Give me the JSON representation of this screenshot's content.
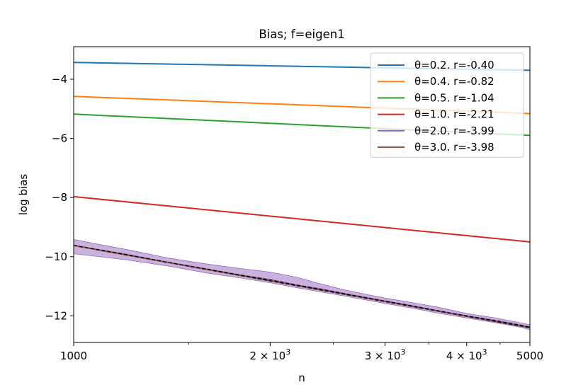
{
  "chart_data": {
    "type": "line",
    "title": "Bias;  f=eigen1",
    "xlabel": "n",
    "ylabel": "log bias",
    "xscale": "log",
    "xlim": [
      1000,
      5000
    ],
    "ylim": [
      -12.9,
      -2.9
    ],
    "xticks": [
      {
        "value": 1000,
        "label": "1000",
        "mant": "",
        "exp": ""
      },
      {
        "value": 2000,
        "label": "",
        "mant": "2 × 10",
        "exp": "3"
      },
      {
        "value": 3000,
        "label": "",
        "mant": "3 × 10",
        "exp": "3"
      },
      {
        "value": 4000,
        "label": "",
        "mant": "4 × 10",
        "exp": "3"
      },
      {
        "value": 5000,
        "label": "5000",
        "mant": "",
        "exp": ""
      }
    ],
    "yticks": [
      {
        "value": -4,
        "label": "−4"
      },
      {
        "value": -6,
        "label": "−6"
      },
      {
        "value": -8,
        "label": "−8"
      },
      {
        "value": -10,
        "label": "−10"
      },
      {
        "value": -12,
        "label": "−12"
      }
    ],
    "grid": false,
    "legend_position": "top-right",
    "series": [
      {
        "name": "θ=0.2. r=-0.40",
        "color": "#1f77b4",
        "x": [
          1000,
          5000
        ],
        "y": [
          -3.43,
          -3.7
        ]
      },
      {
        "name": "θ=0.4. r=-0.82",
        "color": "#ff7f0e",
        "x": [
          1000,
          5000
        ],
        "y": [
          -4.58,
          -5.16
        ]
      },
      {
        "name": "θ=0.5. r=-1.04",
        "color": "#2ca02c",
        "x": [
          1000,
          5000
        ],
        "y": [
          -5.18,
          -5.9
        ]
      },
      {
        "name": "θ=1.0. r=-2.21",
        "color": "#d62728",
        "x": [
          1000,
          5000
        ],
        "y": [
          -7.97,
          -9.5
        ]
      },
      {
        "name": "θ=2.0. r=-3.99",
        "color": "#9467bd",
        "band": true,
        "x": [
          1000,
          1200,
          1400,
          1600,
          1800,
          2000,
          2200,
          2400,
          2600,
          2800,
          3000,
          3300,
          3600,
          4000,
          4400,
          4800,
          5000
        ],
        "y": [
          -9.62,
          -9.92,
          -10.2,
          -10.42,
          -10.62,
          -10.78,
          -10.96,
          -11.1,
          -11.25,
          -11.38,
          -11.5,
          -11.66,
          -11.82,
          -12.0,
          -12.15,
          -12.3,
          -12.38
        ],
        "band_lower": [
          -9.9,
          -10.1,
          -10.32,
          -10.55,
          -10.72,
          -10.88,
          -11.05,
          -11.2,
          -11.33,
          -11.46,
          -11.58,
          -11.74,
          -11.9,
          -12.07,
          -12.22,
          -12.37,
          -12.47
        ],
        "band_upper": [
          -9.42,
          -9.75,
          -10.05,
          -10.25,
          -10.4,
          -10.52,
          -10.7,
          -10.93,
          -11.12,
          -11.27,
          -11.4,
          -11.55,
          -11.7,
          -11.92,
          -12.06,
          -12.22,
          -12.3
        ]
      },
      {
        "name": "θ=3.0. r=-3.98",
        "color": "#8c564b",
        "x": [
          1000,
          5000
        ],
        "y": [
          -9.62,
          -12.4
        ]
      }
    ]
  }
}
